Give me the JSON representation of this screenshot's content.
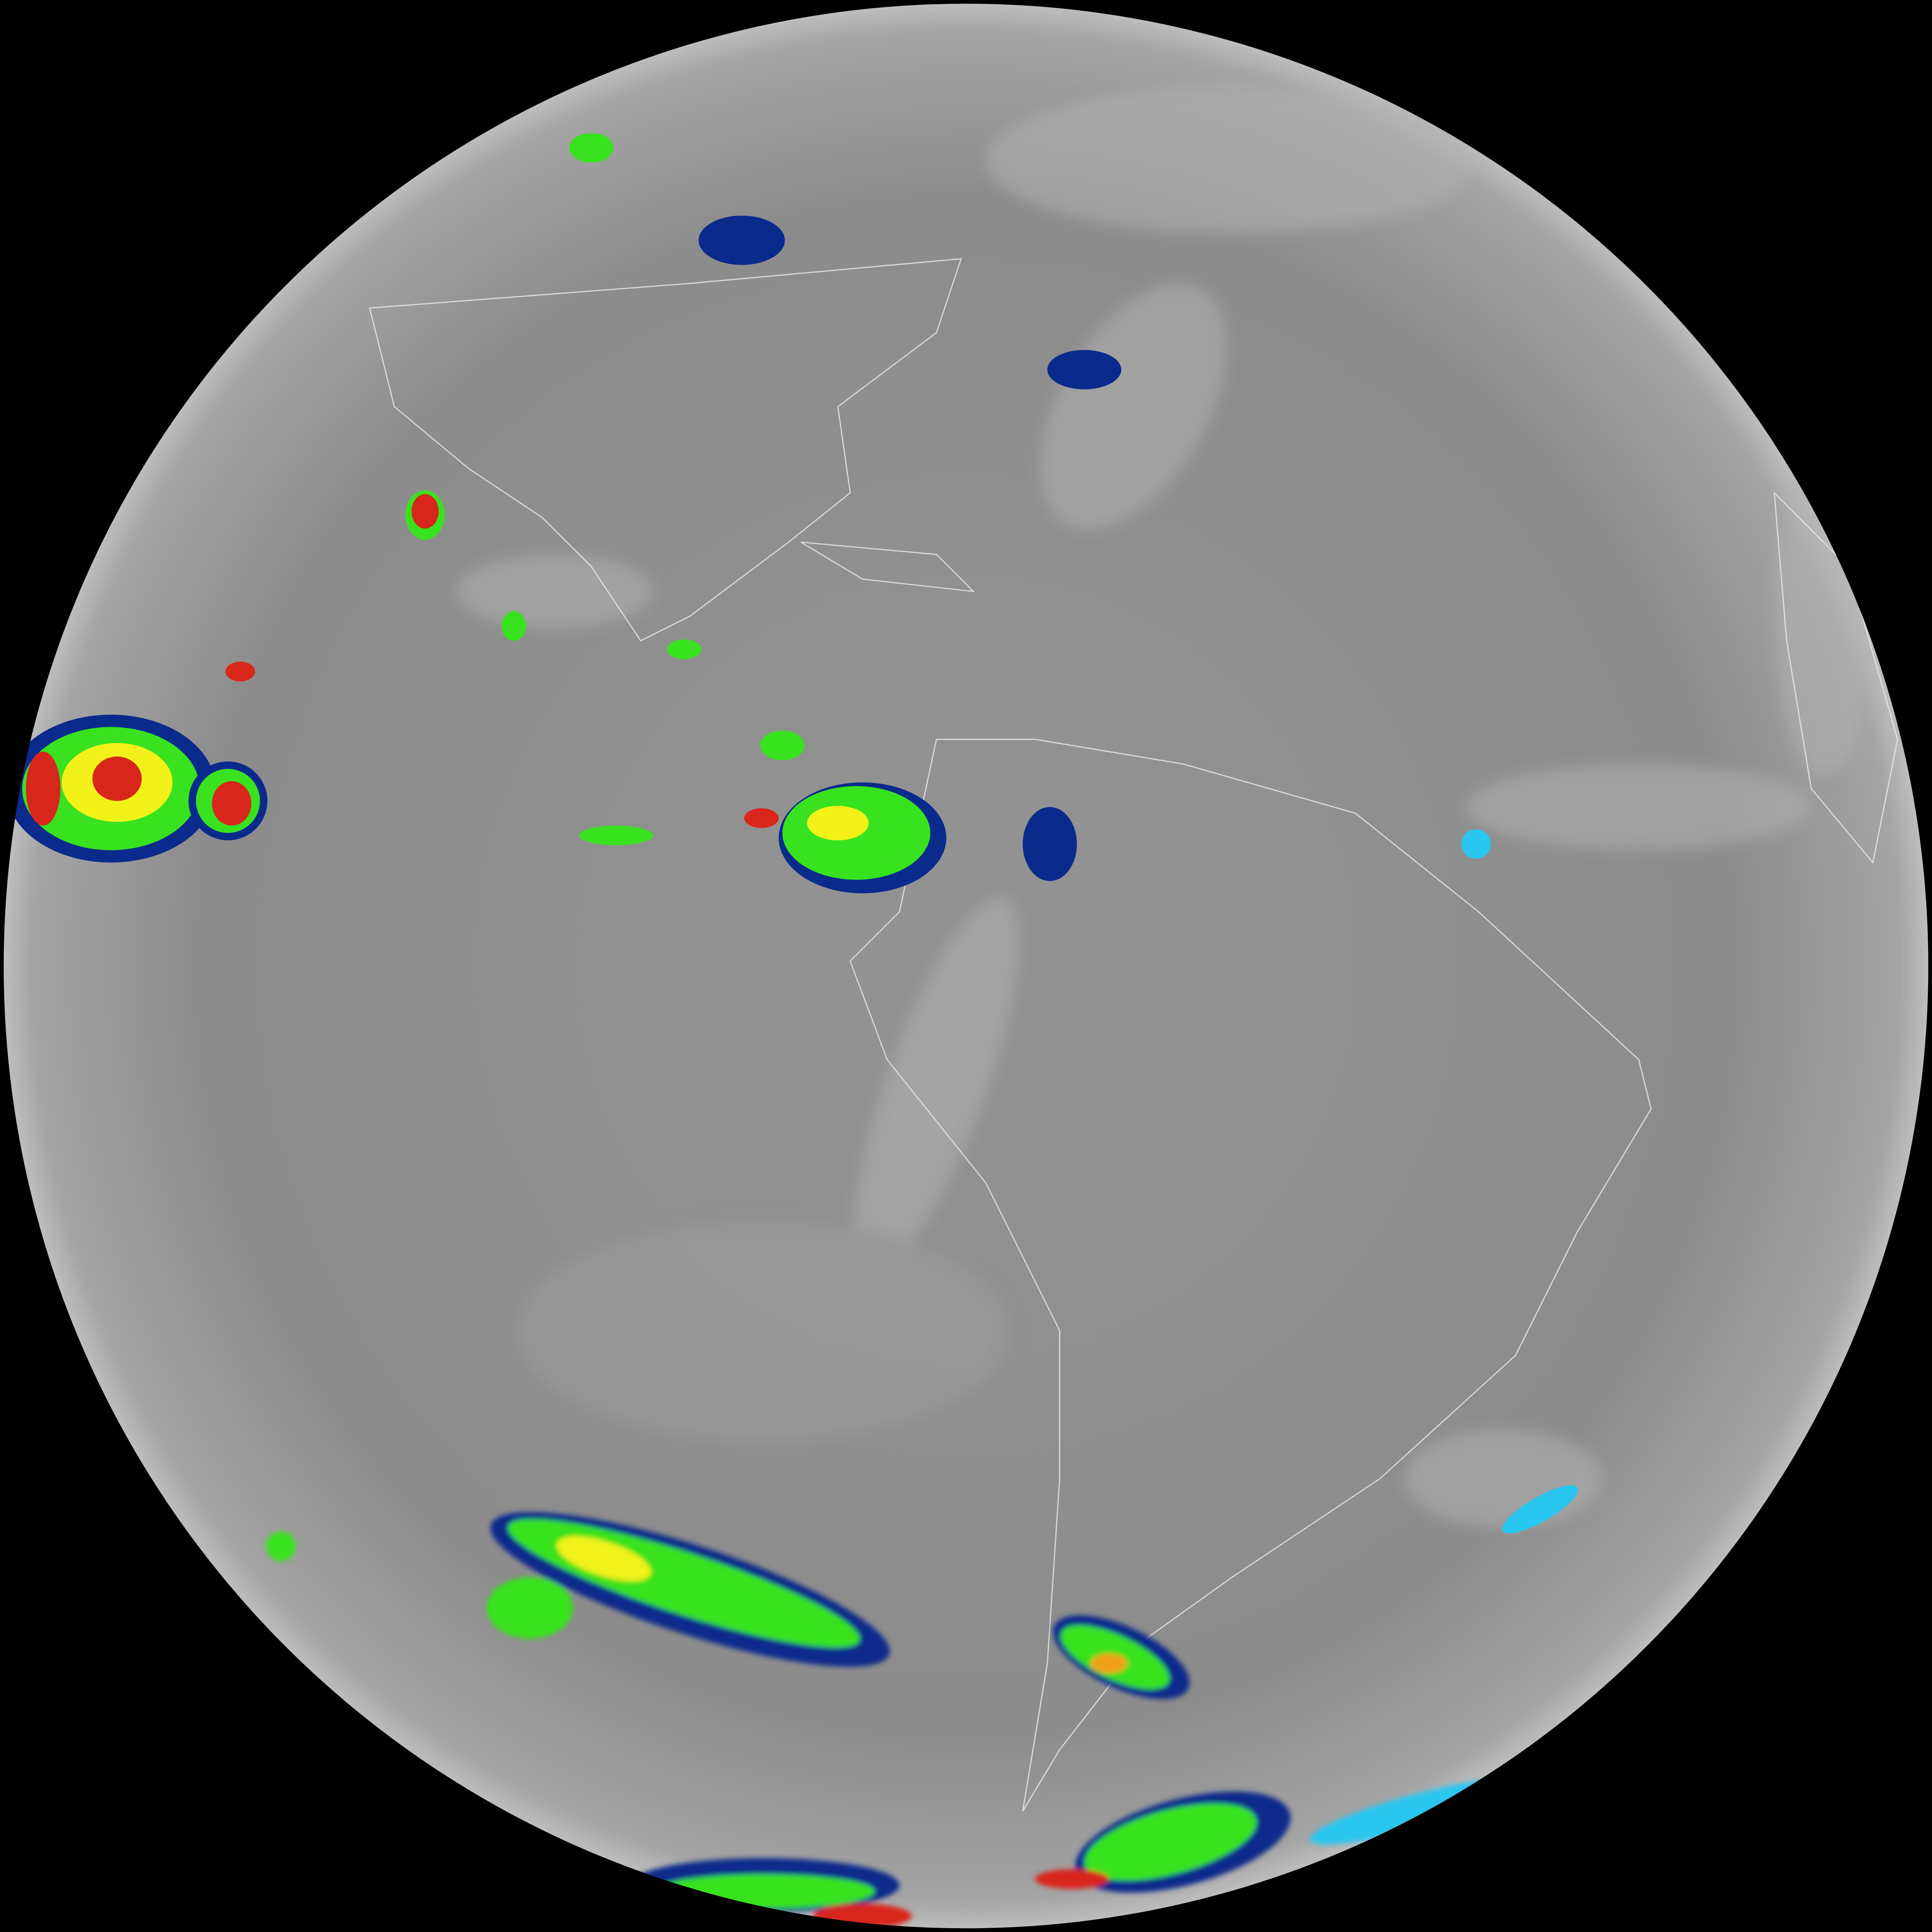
{
  "image": {
    "kind": "full-disk infrared satellite view of the Earth",
    "colors": {
      "space": "#000000",
      "disk_gray": "#8e8e8e",
      "disk_light": "#b4b4b4",
      "coastline": "#e8e8e8",
      "cold_cloud_cyan": "#29c6f0",
      "cold_cloud_blue": "#0a2a8c",
      "colder_green": "#39e21f",
      "colder_yellow": "#f2f21a",
      "coldest_red": "#d8261a"
    }
  }
}
